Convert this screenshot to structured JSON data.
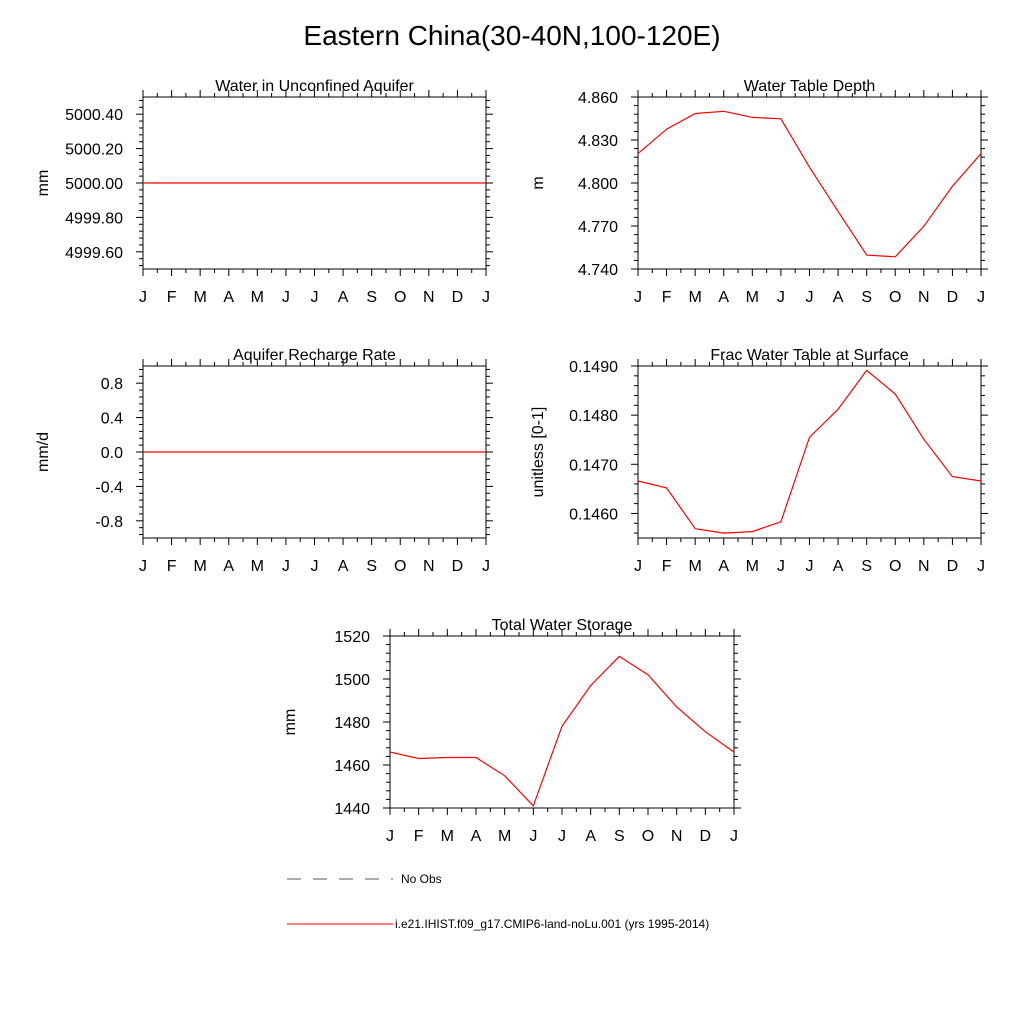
{
  "title": "Eastern China(30-40N,100-120E)",
  "colors": {
    "model": "#ff0000",
    "obs": "#555555",
    "axis": "#000000"
  },
  "legend": {
    "obs_label": "No Obs",
    "model_label": "i.e21.IHIST.f09_g17.CMIP6-land-noLu.001 (yrs 1995-2014)"
  },
  "chart_data": [
    {
      "type": "line",
      "title": "Water in Unconfined Aquifer",
      "ylabel": "mm",
      "xlabel": "",
      "categories": [
        "J",
        "F",
        "M",
        "A",
        "M",
        "J",
        "J",
        "A",
        "S",
        "O",
        "N",
        "D",
        "J"
      ],
      "yticks": [
        4999.6,
        4999.8,
        5000.0,
        5000.2,
        5000.4
      ],
      "ytick_labels": [
        "4999.60",
        "4999.80",
        "5000.00",
        "5000.20",
        "5000.40"
      ],
      "ylim": [
        4999.5,
        5000.5
      ],
      "series": [
        {
          "values": [
            5000,
            5000,
            5000,
            5000,
            5000,
            5000,
            5000,
            5000,
            5000,
            5000,
            5000,
            5000,
            5000
          ]
        }
      ]
    },
    {
      "type": "line",
      "title": "Water Table Depth",
      "ylabel": "m",
      "xlabel": "",
      "categories": [
        "J",
        "F",
        "M",
        "A",
        "M",
        "J",
        "J",
        "A",
        "S",
        "O",
        "N",
        "D",
        "J"
      ],
      "yticks": [
        4.74,
        4.77,
        4.8,
        4.83,
        4.86
      ],
      "ytick_labels": [
        "4.740",
        "4.770",
        "4.800",
        "4.830",
        "4.860"
      ],
      "ylim": [
        4.74,
        4.86
      ],
      "series": [
        {
          "values": [
            4.8205,
            4.8375,
            4.8485,
            4.85,
            4.8458,
            4.8448,
            4.811,
            4.7802,
            4.7497,
            4.7485,
            4.7698,
            4.7977,
            4.8205
          ]
        }
      ]
    },
    {
      "type": "line",
      "title": "Aquifer Recharge Rate",
      "ylabel": "mm/d",
      "xlabel": "",
      "categories": [
        "J",
        "F",
        "M",
        "A",
        "M",
        "J",
        "J",
        "A",
        "S",
        "O",
        "N",
        "D",
        "J"
      ],
      "yticks": [
        -0.8,
        -0.4,
        0.0,
        0.4,
        0.8
      ],
      "ytick_labels": [
        "-0.8",
        "-0.4",
        "0.0",
        "0.4",
        "0.8"
      ],
      "ylim": [
        -1.0,
        1.0
      ],
      "series": [
        {
          "values": [
            0,
            0,
            0,
            0,
            0,
            0,
            0,
            0,
            0,
            0,
            0,
            0,
            0
          ]
        }
      ]
    },
    {
      "type": "line",
      "title": "Frac Water Table at Surface",
      "ylabel": "unitless [0-1]",
      "xlabel": "",
      "categories": [
        "J",
        "F",
        "M",
        "A",
        "M",
        "J",
        "J",
        "A",
        "S",
        "O",
        "N",
        "D",
        "J"
      ],
      "yticks": [
        0.146,
        0.147,
        0.148,
        0.149
      ],
      "ytick_labels": [
        "0.1460",
        "0.1470",
        "0.1480",
        "0.1490"
      ],
      "ylim": [
        0.1455,
        0.149
      ],
      "series": [
        {
          "values": [
            0.14666,
            0.14652,
            0.14569,
            0.1456,
            0.14563,
            0.14583,
            0.14755,
            0.14812,
            0.14891,
            0.14843,
            0.14751,
            0.14675,
            0.14666
          ]
        }
      ]
    },
    {
      "type": "line",
      "title": "Total Water Storage",
      "ylabel": "mm",
      "xlabel": "",
      "categories": [
        "J",
        "F",
        "M",
        "A",
        "M",
        "J",
        "J",
        "A",
        "S",
        "O",
        "N",
        "D",
        "J"
      ],
      "yticks": [
        1440,
        1460,
        1480,
        1500,
        1520
      ],
      "ytick_labels": [
        "1440",
        "1460",
        "1480",
        "1500",
        "1520"
      ],
      "ylim": [
        1440,
        1520
      ],
      "series": [
        {
          "values": [
            1466,
            1463,
            1463.5,
            1463.5,
            1455,
            1441,
            1478,
            1497,
            1510.5,
            1502,
            1487,
            1475.5,
            1466
          ]
        }
      ]
    }
  ]
}
